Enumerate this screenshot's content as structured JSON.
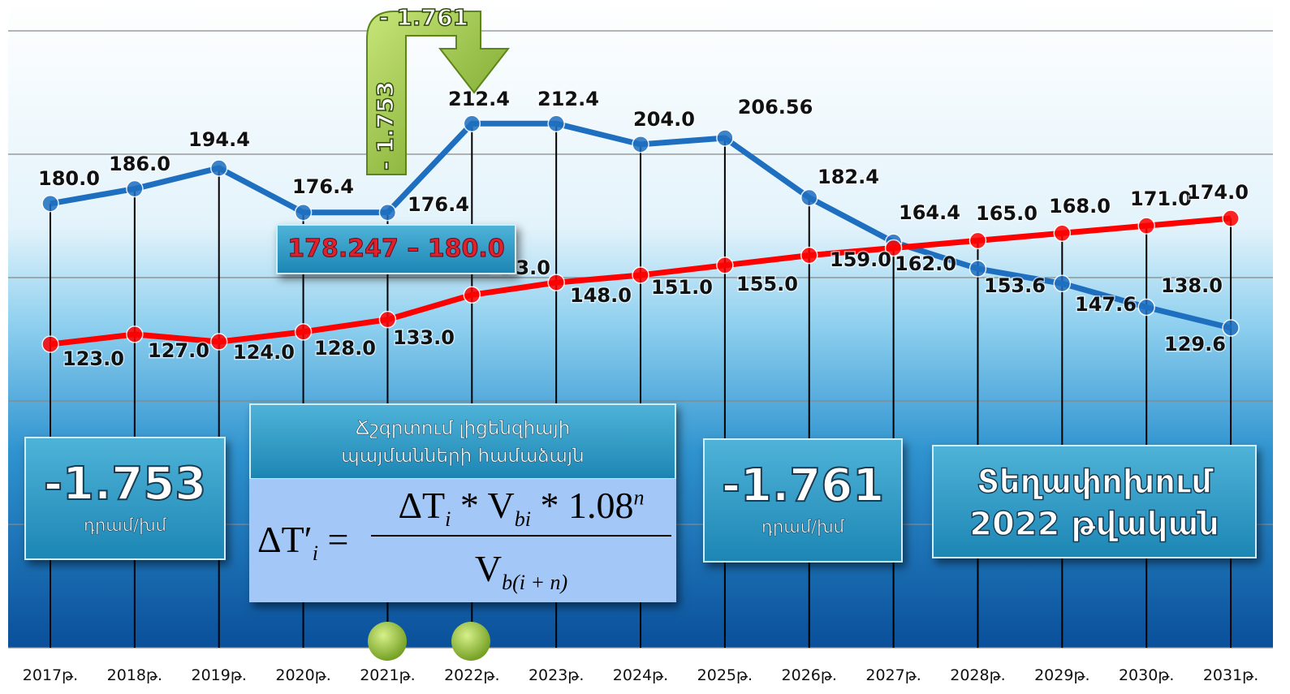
{
  "chart_data": {
    "type": "line",
    "categories": [
      "2017թ.",
      "2018թ.",
      "2019թ.",
      "2020թ.",
      "2021թ.",
      "2022թ.",
      "2023թ.",
      "2024թ.",
      "2025թ.",
      "2026թ.",
      "2027թ.",
      "2028թ.",
      "2029թ.",
      "2030թ.",
      "2031թ."
    ],
    "series": [
      {
        "color": "#1f6fc0",
        "values": [
          180.0,
          186.0,
          194.4,
          176.4,
          176.4,
          212.4,
          212.4,
          204.0,
          206.56,
          182.4,
          164.4,
          153.6,
          147.6,
          138.0,
          129.6
        ],
        "value_labels": [
          "180.0",
          "186.0",
          "194.4",
          "176.4",
          "176.4",
          "212.4",
          "212.4",
          "204.0",
          "206.56",
          "182.4",
          "164.4",
          "153.6",
          "147.6",
          "138.0",
          "129.6"
        ]
      },
      {
        "color": "#ff0000",
        "values": [
          123.0,
          127.0,
          124.0,
          128.0,
          133.0,
          143.0,
          148.0,
          151.0,
          155.0,
          159.0,
          162.0,
          165.0,
          168.0,
          171.0,
          174.0
        ],
        "value_labels": [
          "123.0",
          "127.0",
          "124.0",
          "128.0",
          "133.0",
          "143.0",
          "148.0",
          "151.0",
          "155.0",
          "159.0",
          "162.0",
          "165.0",
          "168.0",
          "171.0",
          "174.0"
        ]
      }
    ],
    "ylim": [
      0,
      250
    ],
    "yticks": [
      0,
      50,
      100,
      150,
      200,
      250
    ],
    "grid": true,
    "annotations": {
      "range_box": "178.247 – 180.0",
      "arrow_up": "- 1.753",
      "arrow_right": "- 1.761",
      "box_left": {
        "value": "-1.753",
        "unit": "դրամ/խմ"
      },
      "box_mid": {
        "value": "-1.761",
        "unit": "դրամ/խմ"
      },
      "box_right": [
        "Տեղափոխում",
        "2022 թվական"
      ],
      "formula_title": [
        "Ճշգրտում լիցենզիայի",
        "պայմանների համաձայն"
      ],
      "formula": {
        "lhs": "ΔT′",
        "lhs_sub": "i",
        "eq": "=",
        "num": [
          "ΔT",
          "i",
          " * V",
          "bi",
          " * 1.08",
          "n"
        ],
        "den": [
          "V",
          "b(i + n)"
        ]
      }
    }
  }
}
